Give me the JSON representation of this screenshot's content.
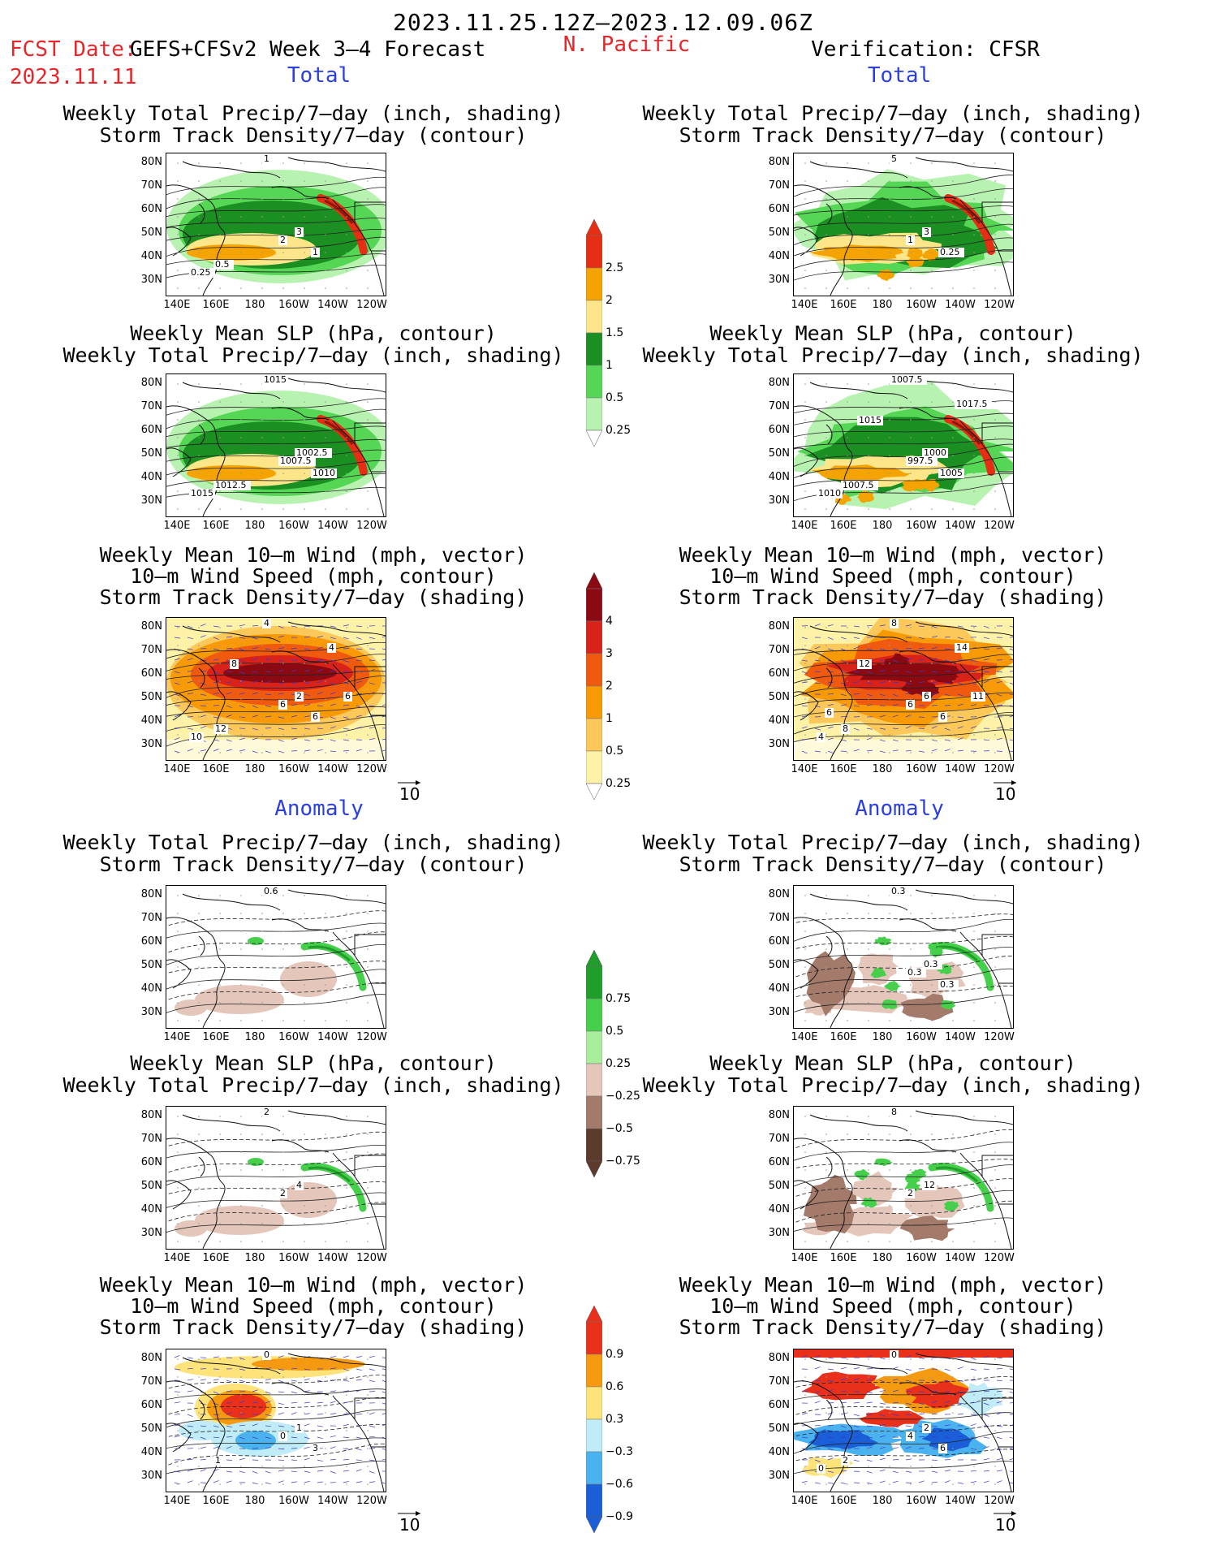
{
  "header": {
    "date_range": "2023.11.25.12Z–2023.12.09.06Z",
    "fcst_label": "FCST Date:",
    "model": "GEFS+CFSv2 Week 3–4 Forecast",
    "fcst_date": "2023.11.11",
    "region": "N. Pacific",
    "verification": "Verification: CFSR"
  },
  "sections": {
    "total": "Total",
    "anomaly": "Anomaly"
  },
  "panel_titles": {
    "precip_track": [
      "Weekly Total Precip/7–day (inch, shading)",
      "Storm Track Density/7–day (contour)"
    ],
    "slp_precip": [
      "Weekly Mean SLP (hPa, contour)",
      "Weekly Total Precip/7–day (inch, shading)"
    ],
    "wind_track": [
      "Weekly Mean 10–m Wind (mph, vector)",
      "10–m Wind Speed (mph, contour)",
      "Storm Track Density/7–day (shading)"
    ]
  },
  "axes": {
    "lat": [
      "80N",
      "70N",
      "60N",
      "50N",
      "40N",
      "30N"
    ],
    "lon": [
      "140E",
      "160E",
      "180",
      "160W",
      "140W",
      "120W"
    ]
  },
  "vector_ref": "10",
  "colorbars": {
    "precip_total": {
      "labels": [
        "2.5",
        "2",
        "1.5",
        "1",
        "0.5",
        "0.25"
      ],
      "colors": [
        "#e62e14",
        "#f5a300",
        "#fde68a",
        "#1b8f22",
        "#55d655",
        "#b8f2b0"
      ]
    },
    "track_total": {
      "labels": [
        "4",
        "3",
        "2",
        "1",
        "0.5",
        "0.25"
      ],
      "colors": [
        "#8b0a12",
        "#d8221a",
        "#f05a0e",
        "#f79a06",
        "#fcc85a",
        "#fdf2a8"
      ]
    },
    "precip_anom": {
      "labels": [
        "0.75",
        "0.5",
        "0.25",
        "−0.25",
        "−0.5",
        "−0.75"
      ],
      "colors": [
        "#1f9e2a",
        "#45cf4a",
        "#a8ee9c",
        "#e4c6bb",
        "#a47a6a",
        "#5c3a2c"
      ]
    },
    "track_anom": {
      "labels": [
        "0.9",
        "0.6",
        "0.3",
        "−0.3",
        "−0.6",
        "−0.9"
      ],
      "colors": [
        "#e8301a",
        "#f59a10",
        "#fde37a",
        "#c0ecf8",
        "#4ab2ef",
        "#1a5fd8"
      ]
    }
  },
  "contour_labels": {
    "f_pt": [
      "1",
      "3",
      "2",
      "1",
      "0.5",
      "0.25"
    ],
    "v_pt": [
      "5",
      "3",
      "1",
      "0.25"
    ],
    "f_sp": [
      "1015",
      "1002.5",
      "1007.5",
      "1010",
      "1012.5",
      "1015"
    ],
    "v_sp": [
      "1007.5",
      "1000",
      "997.5",
      "1005",
      "1007.5",
      "1010",
      "1015",
      "1017.5"
    ],
    "f_wt": [
      "4",
      "2",
      "6",
      "6",
      "12",
      "10",
      "8",
      "4",
      "6"
    ],
    "v_wt": [
      "8",
      "6",
      "6",
      "6",
      "8",
      "4",
      "12",
      "14",
      "11",
      "6"
    ],
    "f_pa": [
      "0.6"
    ],
    "v_pa": [
      "0.3",
      "0.3",
      "0.3",
      "0.3"
    ],
    "f_sa": [
      "2",
      "4",
      "2"
    ],
    "v_sa": [
      "8",
      "12",
      "2"
    ],
    "f_wa": [
      "0",
      "1",
      "0",
      "3",
      "1"
    ],
    "v_wa": [
      "0",
      "2",
      "4",
      "6",
      "2",
      "0"
    ]
  }
}
